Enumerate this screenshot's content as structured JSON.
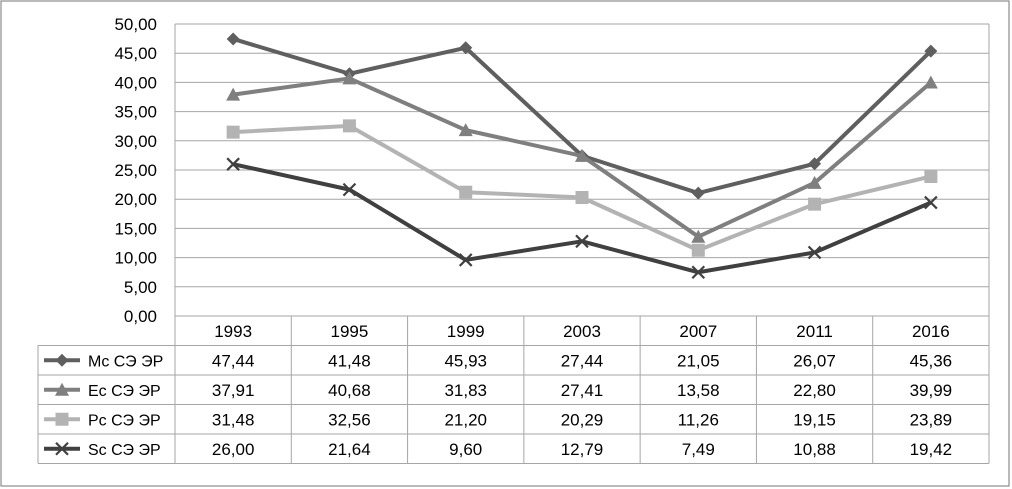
{
  "chart_data": {
    "type": "line",
    "title": "",
    "xlabel": "",
    "ylabel": "",
    "categories": [
      "1993",
      "1995",
      "1999",
      "2003",
      "2007",
      "2011",
      "2016"
    ],
    "ylim": [
      0,
      50
    ],
    "y_ticks": [
      "0,00",
      "5,00",
      "10,00",
      "15,00",
      "20,00",
      "25,00",
      "30,00",
      "35,00",
      "40,00",
      "45,00",
      "50,00"
    ],
    "grid": true,
    "legend": "data table below plot",
    "series": [
      {
        "name": "Mc СЭ ЭР",
        "values": [
          47.44,
          41.48,
          45.93,
          27.44,
          21.05,
          26.07,
          45.36
        ],
        "labels": [
          "47,44",
          "41,48",
          "45,93",
          "27,44",
          "21,05",
          "26,07",
          "45,36"
        ],
        "color": "#5f5f5f",
        "marker": "diamond"
      },
      {
        "name": "Ec СЭ ЭР",
        "values": [
          37.91,
          40.68,
          31.83,
          27.41,
          13.58,
          22.8,
          39.99
        ],
        "labels": [
          "37,91",
          "40,68",
          "31,83",
          "27,41",
          "13,58",
          "22,80",
          "39,99"
        ],
        "color": "#7f7f7f",
        "marker": "triangle"
      },
      {
        "name": "Pc СЭ ЭР",
        "values": [
          31.48,
          32.56,
          21.2,
          20.29,
          11.26,
          19.15,
          23.89
        ],
        "labels": [
          "31,48",
          "32,56",
          "21,20",
          "20,29",
          "11,26",
          "19,15",
          "23,89"
        ],
        "color": "#b3b3b3",
        "marker": "square"
      },
      {
        "name": "Sc СЭ ЭР",
        "values": [
          26.0,
          21.64,
          9.6,
          12.79,
          7.49,
          10.88,
          19.42
        ],
        "labels": [
          "26,00",
          "21,64",
          "9,60",
          "12,79",
          "7,49",
          "10,88",
          "19,42"
        ],
        "color": "#404040",
        "marker": "x"
      }
    ]
  }
}
